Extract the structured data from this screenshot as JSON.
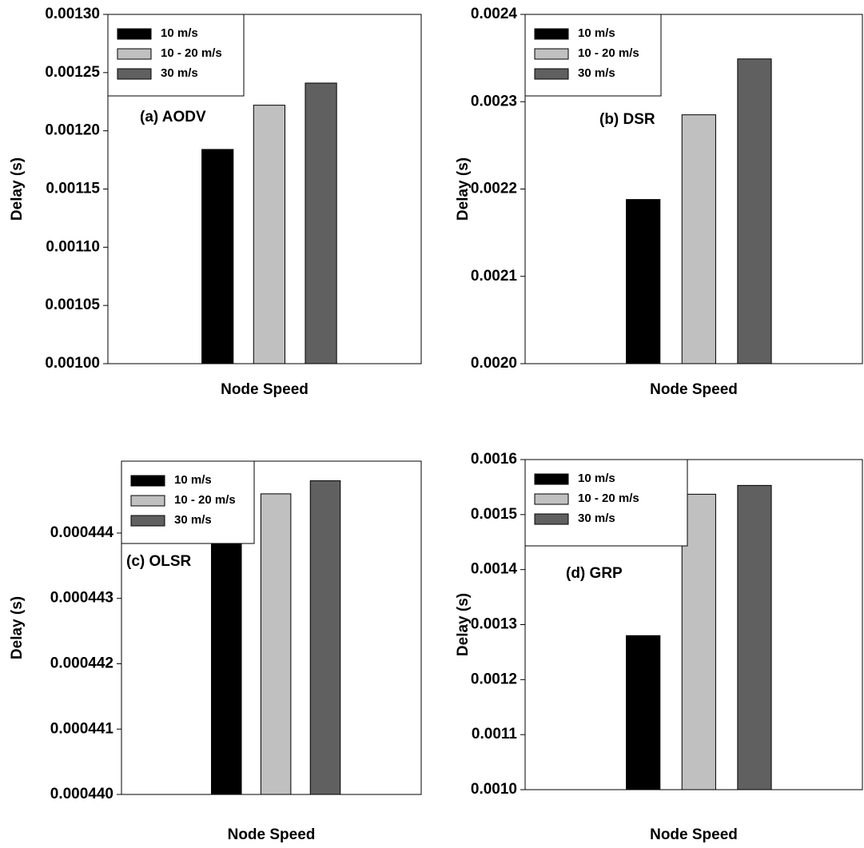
{
  "chart_data": [
    {
      "type": "bar",
      "annotation": "(a) AODV",
      "xlabel": "Node Speed",
      "ylabel": "Delay (s)",
      "categories": [
        null
      ],
      "legend": "upper left",
      "series": [
        {
          "name": "10 m/s",
          "color": "#000000",
          "values": [
            0.001184
          ]
        },
        {
          "name": "10 - 20 m/s",
          "color": "#c0c0c0",
          "values": [
            0.001222
          ]
        },
        {
          "name": "30 m/s",
          "color": "#606060",
          "values": [
            0.001241
          ]
        }
      ],
      "ylim": [
        0.001,
        0.0013
      ],
      "yticks": [
        {
          "value": 0.001,
          "label": "0.00100"
        },
        0.00105,
        {
          "value": 0.0011,
          "label": "0.00110"
        },
        0.00115,
        {
          "value": 0.0012,
          "label": "0.00120"
        },
        0.00125,
        {
          "value": 0.0013,
          "label": "0.00130"
        }
      ]
    },
    {
      "type": "bar",
      "annotation": "(b) DSR",
      "xlabel": "Node Speed",
      "ylabel": "Delay (s)",
      "categories": [
        null
      ],
      "legend": "upper left",
      "series": [
        {
          "name": "10 m/s",
          "color": "#000000",
          "values": [
            0.002188
          ]
        },
        {
          "name": "10 - 20 m/s",
          "color": "#c0c0c0",
          "values": [
            0.002285
          ]
        },
        {
          "name": "30 m/s",
          "color": "#606060",
          "values": [
            0.002349
          ]
        }
      ],
      "ylim": [
        0.002,
        0.0024
      ],
      "yticks": [
        {
          "value": 0.002,
          "label": "0.0020"
        },
        0.0021,
        0.0022,
        0.0023,
        0.0024
      ]
    },
    {
      "type": "bar",
      "annotation": "(c) OLSR",
      "xlabel": "Node Speed",
      "ylabel": "Delay (s)",
      "categories": [
        null
      ],
      "legend": "upper left",
      "series": [
        {
          "name": "10 m/s",
          "color": "#000000",
          "values": [
            0.00044406
          ]
        },
        {
          "name": "10 - 20 m/s",
          "color": "#c0c0c0",
          "values": [
            0.0004446
          ]
        },
        {
          "name": "30 m/s",
          "color": "#606060",
          "values": [
            0.0004448
          ]
        }
      ],
      "ylim": [
        0.00044,
        0.0004451
      ],
      "yticks": [
        {
          "value": 0.00044,
          "label": "0.000440"
        },
        0.000441,
        0.000442,
        0.000443,
        0.000444
      ]
    },
    {
      "type": "bar",
      "annotation": "(d) GRP",
      "xlabel": "Node Speed",
      "ylabel": "Delay (s)",
      "categories": [
        null
      ],
      "legend": "upper left",
      "series": [
        {
          "name": "10 m/s",
          "color": "#000000",
          "values": [
            0.00128
          ]
        },
        {
          "name": "10 - 20 m/s",
          "color": "#c0c0c0",
          "values": [
            0.001537
          ]
        },
        {
          "name": "30 m/s",
          "color": "#606060",
          "values": [
            0.001553
          ]
        }
      ],
      "ylim": [
        0.001,
        0.0016
      ],
      "yticks": [
        {
          "value": 0.001,
          "label": "0.0010"
        },
        0.0011,
        0.0012,
        0.0013,
        0.0014,
        0.0015,
        0.0016
      ]
    }
  ]
}
